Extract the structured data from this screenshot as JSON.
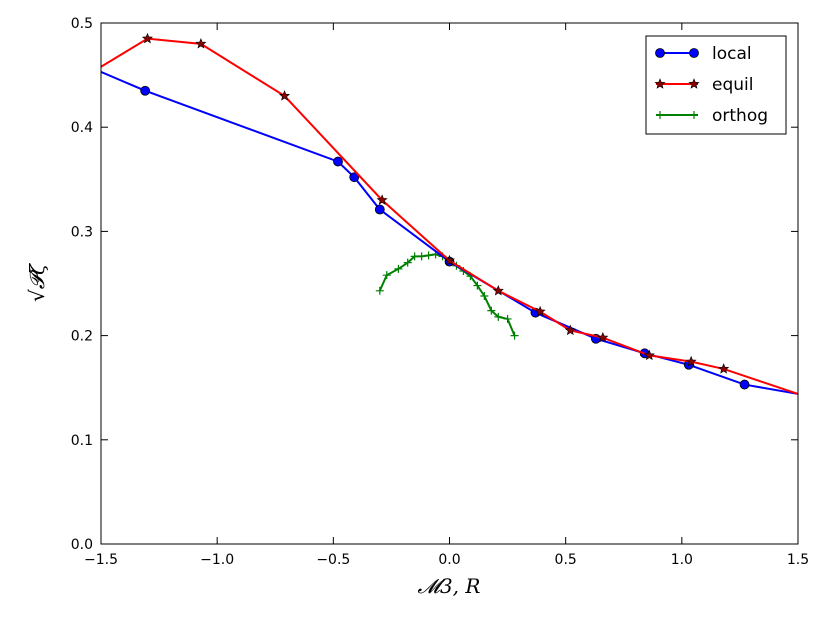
{
  "chart_data": {
    "type": "line",
    "xlabel": "𝓜3, R",
    "ylabel": "√𝓟ζ",
    "xlim": [
      -1.5,
      1.5
    ],
    "ylim": [
      0.0,
      0.5
    ],
    "xticks": [
      "-1.5",
      "-1.0",
      "-0.5",
      "0.0",
      "0.5",
      "1.0",
      "1.5"
    ],
    "yticks": [
      "0.0",
      "0.1",
      "0.2",
      "0.3",
      "0.4",
      "0.5"
    ],
    "grid": false,
    "legend_position": "top-right",
    "series": [
      {
        "name": "local",
        "color": "#0000ff",
        "marker": "circle",
        "x": [
          -1.5,
          -1.31,
          -0.48,
          -0.41,
          -0.3,
          0.0,
          0.37,
          0.63,
          0.84,
          1.03,
          1.27,
          1.5
        ],
        "y": [
          0.453,
          0.435,
          0.367,
          0.352,
          0.321,
          0.271,
          0.222,
          0.197,
          0.183,
          0.172,
          0.153,
          0.144
        ],
        "marked": [
          false,
          true,
          true,
          true,
          true,
          true,
          true,
          true,
          true,
          true,
          true,
          false
        ]
      },
      {
        "name": "equil",
        "color": "#ff0000",
        "marker": "star",
        "x": [
          -1.5,
          -1.3,
          -1.07,
          -0.71,
          -0.29,
          0.0,
          0.21,
          0.39,
          0.52,
          0.66,
          0.86,
          1.04,
          1.18,
          1.5
        ],
        "y": [
          0.458,
          0.485,
          0.48,
          0.43,
          0.33,
          0.272,
          0.243,
          0.223,
          0.205,
          0.198,
          0.181,
          0.175,
          0.168,
          0.144
        ],
        "marked": [
          false,
          true,
          true,
          true,
          true,
          true,
          true,
          true,
          true,
          true,
          true,
          true,
          true,
          false
        ]
      },
      {
        "name": "orthog",
        "color": "#008000",
        "marker": "plus",
        "x": [
          -0.3,
          -0.27,
          -0.22,
          -0.18,
          -0.15,
          -0.12,
          -0.09,
          -0.06,
          -0.03,
          0.0,
          0.03,
          0.06,
          0.09,
          0.12,
          0.15,
          0.18,
          0.21,
          0.25,
          0.28
        ],
        "y": [
          0.243,
          0.258,
          0.264,
          0.27,
          0.276,
          0.276,
          0.277,
          0.278,
          0.276,
          0.272,
          0.267,
          0.262,
          0.257,
          0.248,
          0.238,
          0.224,
          0.218,
          0.216,
          0.2
        ],
        "marked": [
          true,
          true,
          true,
          true,
          true,
          true,
          true,
          true,
          true,
          true,
          true,
          true,
          true,
          true,
          true,
          true,
          true,
          true,
          true
        ]
      }
    ]
  }
}
